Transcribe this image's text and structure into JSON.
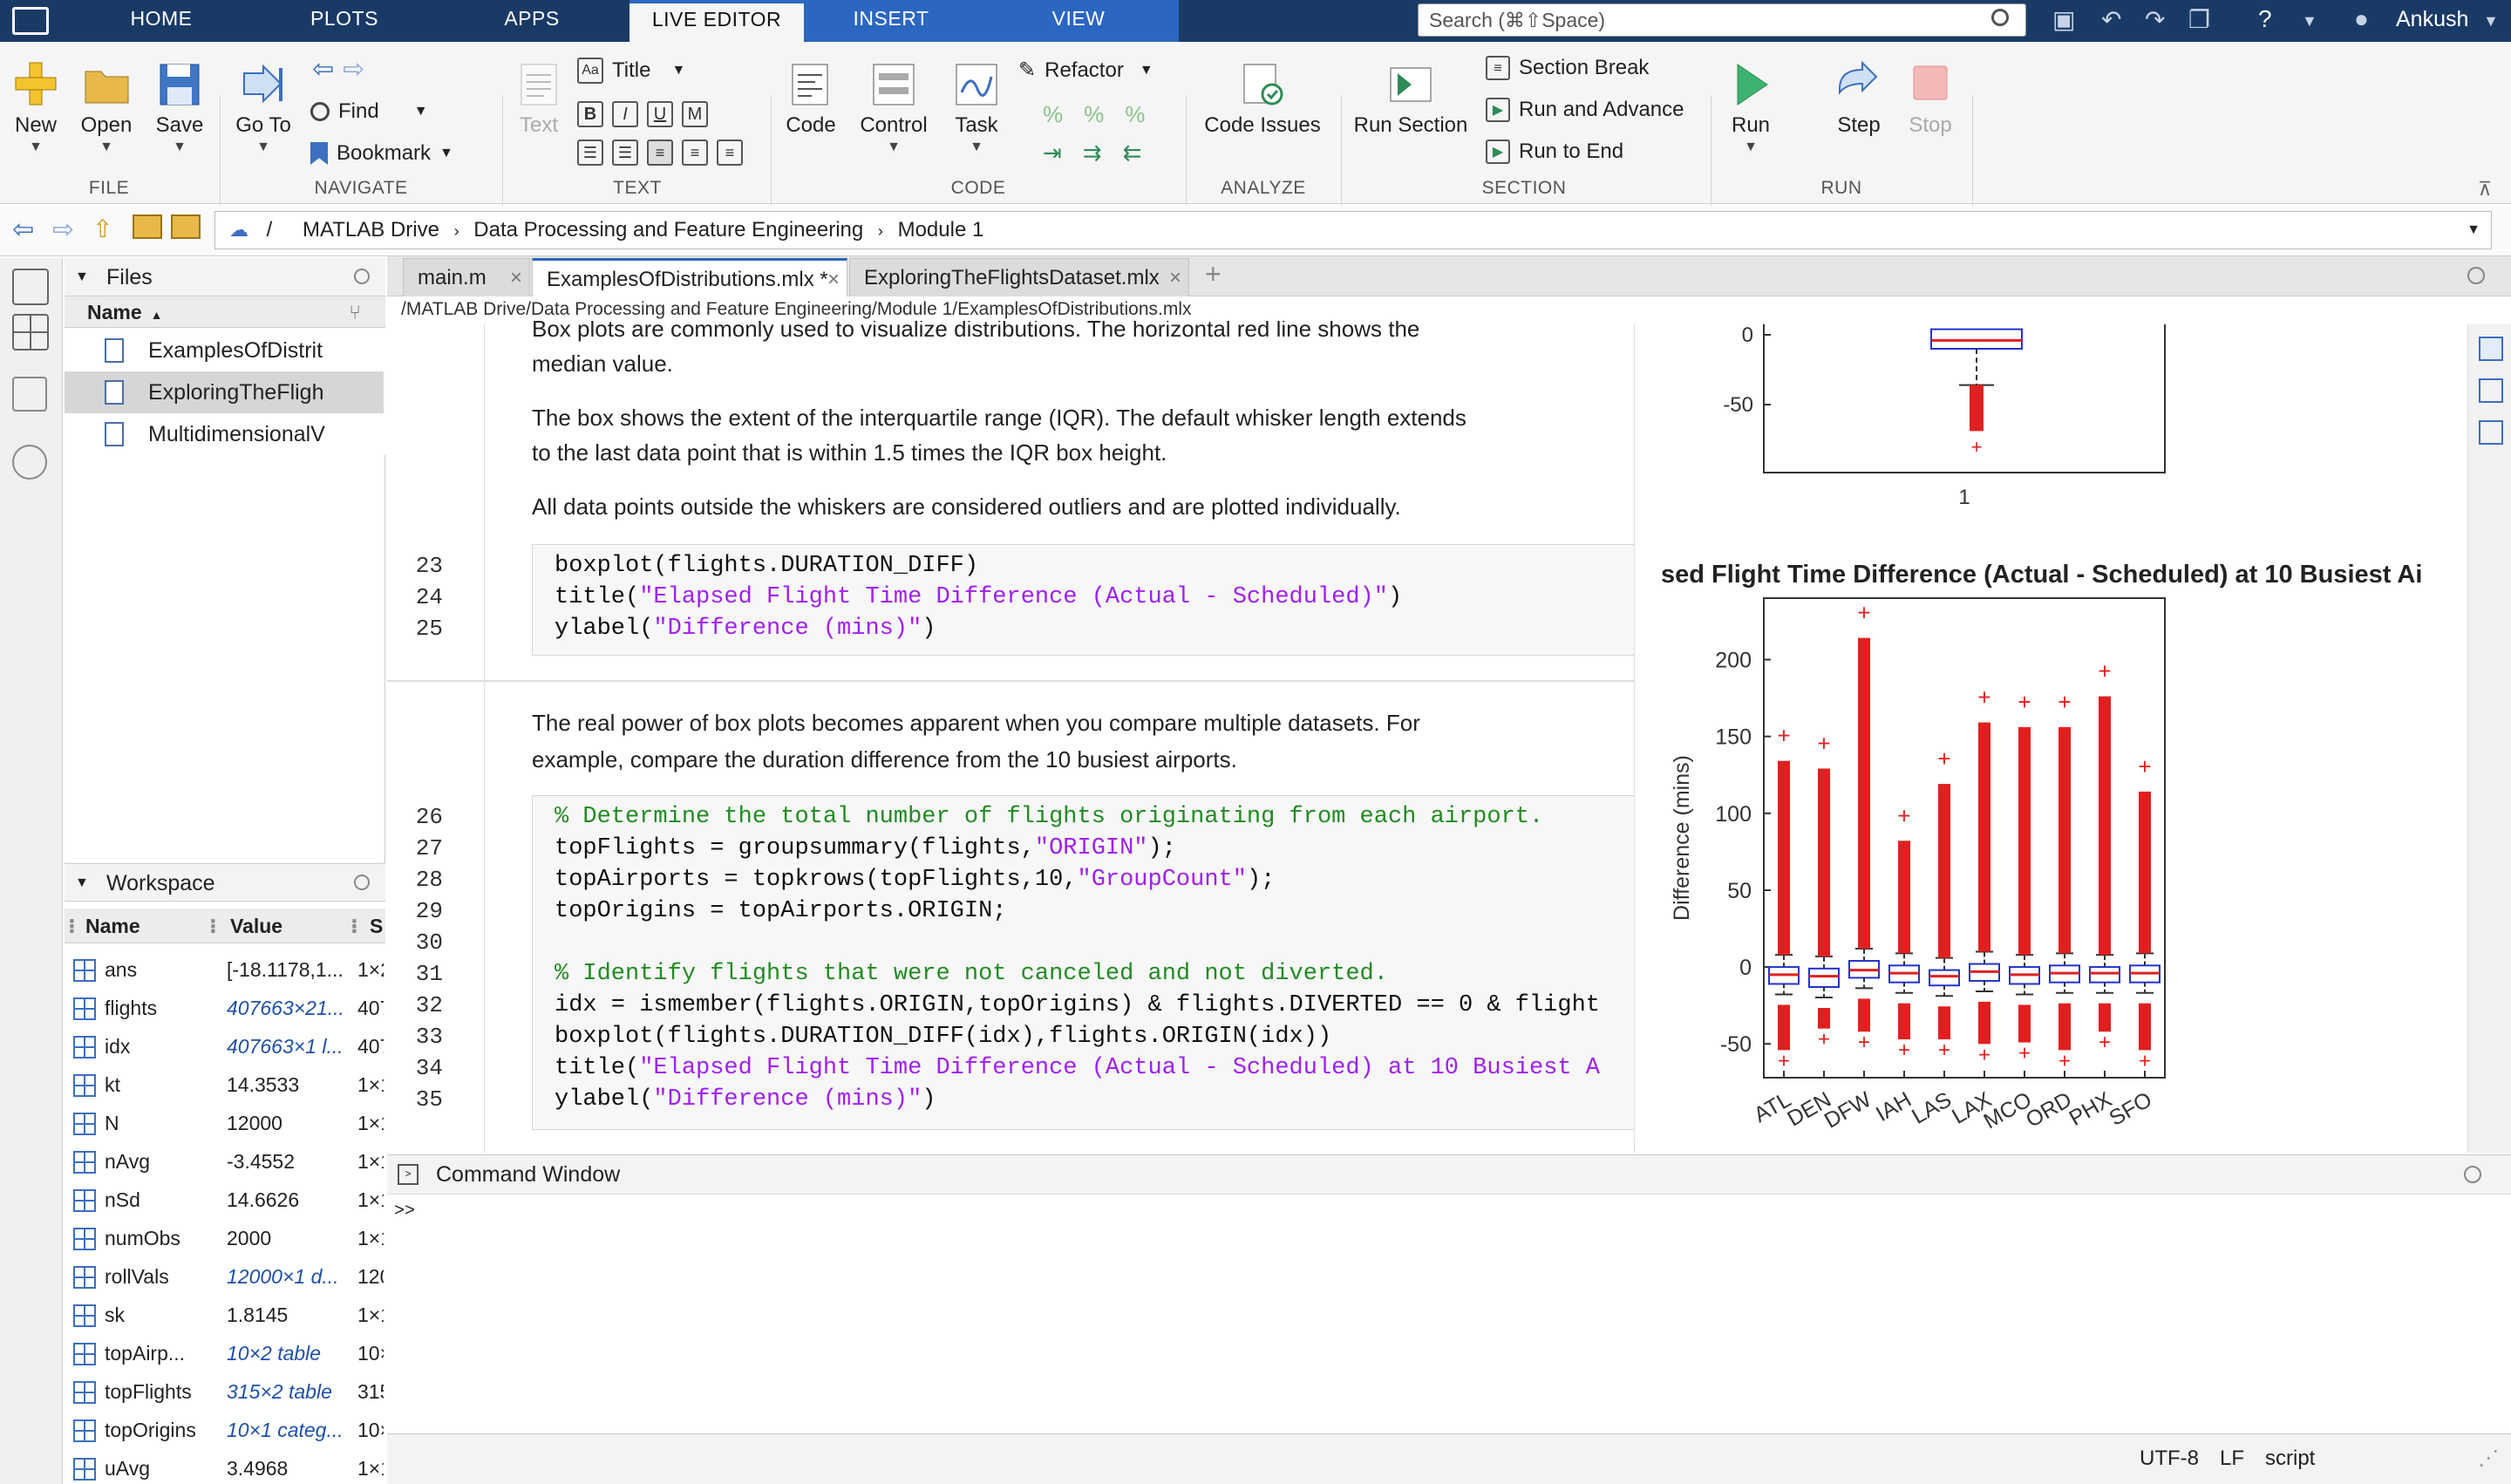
{
  "tabs": {
    "home": "HOME",
    "plots": "PLOTS",
    "apps": "APPS",
    "live_editor": "LIVE EDITOR",
    "insert": "INSERT",
    "view": "VIEW"
  },
  "search": {
    "placeholder": "Search (⌘⇧Space)"
  },
  "user": {
    "name": "Ankush"
  },
  "toolstrip": {
    "file": {
      "new": "New",
      "open": "Open",
      "save": "Save",
      "section": "FILE"
    },
    "navigate": {
      "goto": "Go To",
      "find": "Find",
      "bookmark": "Bookmark",
      "section": "NAVIGATE"
    },
    "text": {
      "text": "Text",
      "title": "Title",
      "section": "TEXT",
      "bold": "B",
      "italic": "I",
      "underline": "U",
      "mono": "M"
    },
    "code": {
      "code": "Code",
      "control": "Control",
      "task": "Task",
      "refactor": "Refactor",
      "section": "CODE"
    },
    "analyze": {
      "issues": "Code Issues",
      "section": "ANALYZE"
    },
    "sect": {
      "run_section": "Run Section",
      "section_break": "Section Break",
      "run_advance": "Run and Advance",
      "run_end": "Run to End",
      "section": "SECTION"
    },
    "run": {
      "run": "Run",
      "step": "Step",
      "stop": "Stop",
      "section": "RUN"
    }
  },
  "address": {
    "root": "/",
    "p1": "MATLAB Drive",
    "p2": "Data Processing and Feature Engineering",
    "p3": "Module 1"
  },
  "files": {
    "title": "Files",
    "col_name": "Name",
    "items": [
      "ExamplesOfDistrit",
      "ExploringTheFligh",
      "MultidimensionalV"
    ]
  },
  "workspace": {
    "title": "Workspace",
    "col_name": "Name",
    "col_value": "Value",
    "col_size": "S",
    "rows": [
      {
        "name": "ans",
        "value": "[-18.1178,1...",
        "size": "1×2"
      },
      {
        "name": "flights",
        "value": "407663×21...",
        "size": "407"
      },
      {
        "name": "idx",
        "value": "407663×1 l...",
        "size": "407"
      },
      {
        "name": "kt",
        "value": "14.3533",
        "size": "1×1"
      },
      {
        "name": "N",
        "value": "12000",
        "size": "1×1"
      },
      {
        "name": "nAvg",
        "value": "-3.4552",
        "size": "1×1"
      },
      {
        "name": "nSd",
        "value": "14.6626",
        "size": "1×1"
      },
      {
        "name": "numObs",
        "value": "2000",
        "size": "1×1"
      },
      {
        "name": "rollVals",
        "value": "12000×1 d...",
        "size": "120"
      },
      {
        "name": "sk",
        "value": "1.8145",
        "size": "1×1"
      },
      {
        "name": "topAirp...",
        "value": "10×2 table",
        "size": "10×"
      },
      {
        "name": "topFlights",
        "value": "315×2 table",
        "size": "315"
      },
      {
        "name": "topOrigins",
        "value": "10×1 categ...",
        "size": "10×"
      },
      {
        "name": "uAvg",
        "value": "3.4968",
        "size": "1×1"
      }
    ]
  },
  "editor": {
    "tabs": [
      "main.m",
      "ExamplesOfDistributions.mlx *",
      "ExploringTheFlightsDataset.mlx"
    ],
    "path": "/MATLAB Drive/Data Processing and Feature Engineering/Module 1/ExamplesOfDistributions.mlx",
    "para0": "Box plots are commonly used to visualize distributions. The horizontal red line shows the",
    "para0b": "median value.",
    "para1": "The box shows the extent of the interquartile range (IQR). The default whisker length extends",
    "para1b": "to the last data point that is within 1.5 times the IQR box height.",
    "para2": "All data points outside the whiskers are considered outliers and are plotted individually.",
    "para3": "The real power of box plots becomes apparent when you compare multiple datasets. For",
    "para3b": "example, compare the duration difference from the 10 busiest airports.",
    "lines": [
      {
        "n": "23",
        "c": "boxplot(flights.DURATION_DIFF)"
      },
      {
        "n": "24",
        "a": "title(",
        "s": "\"Elapsed Flight Time Difference (Actual - Scheduled)\"",
        "b": ")"
      },
      {
        "n": "25",
        "a": "ylabel(",
        "s": "\"Difference (mins)\"",
        "b": ")"
      },
      {
        "n": "26",
        "cm": "% Determine the total number of flights originating from each airport."
      },
      {
        "n": "27",
        "a": "topFlights = groupsummary(flights,",
        "s": "\"ORIGIN\"",
        "b": ");"
      },
      {
        "n": "28",
        "a": "topAirports = topkrows(topFlights,10,",
        "s": "\"GroupCount\"",
        "b": ");"
      },
      {
        "n": "29",
        "c": "topOrigins = topAirports.ORIGIN;"
      },
      {
        "n": "30",
        "c": ""
      },
      {
        "n": "31",
        "cm": "% Identify flights that were not canceled and not diverted."
      },
      {
        "n": "32",
        "c": "idx = ismember(flights.ORIGIN,topOrigins) & flights.DIVERTED == 0 & flight"
      },
      {
        "n": "33",
        "c": "boxplot(flights.DURATION_DIFF(idx),flights.ORIGIN(idx))"
      },
      {
        "n": "34",
        "a": "title(",
        "s": "\"Elapsed Flight Time Difference (Actual - Scheduled) at 10 Busiest A",
        "b": ""
      },
      {
        "n": "35",
        "a": "ylabel(",
        "s": "\"Difference (mins)\"",
        "b": ")"
      }
    ]
  },
  "command": {
    "title": "Command Window",
    "prompt": ">>"
  },
  "status": {
    "enc": "UTF-8",
    "eol": "LF",
    "mode": "script"
  },
  "chart_data": [
    {
      "type": "box",
      "categories": [
        "1"
      ],
      "yticks": [
        0,
        -50
      ],
      "box": {
        "q1": -10,
        "q3": 4,
        "median": -4,
        "whisker_low": -36
      },
      "outliers_range": [
        -36,
        -80
      ]
    },
    {
      "type": "box",
      "title": "sed Flight Time Difference (Actual - Scheduled) at 10 Busiest Ai",
      "ylabel": "Difference (mins)",
      "ylim": [
        -72,
        240
      ],
      "yticks": [
        -50,
        0,
        50,
        100,
        150,
        200
      ],
      "categories": [
        "ATL",
        "DEN",
        "DFW",
        "IAH",
        "LAS",
        "LAX",
        "MCO",
        "ORD",
        "PHX",
        "SFO"
      ],
      "q1": [
        -11,
        -13,
        -7,
        -10,
        -12,
        -9,
        -11,
        -10,
        -10,
        -10
      ],
      "median": [
        -5,
        -6,
        -2,
        -4,
        -6,
        -3,
        -5,
        -4,
        -4,
        -4
      ],
      "q3": [
        0,
        -1,
        4,
        1,
        -2,
        2,
        0,
        1,
        0,
        1
      ],
      "upper": [
        150,
        145,
        230,
        98,
        135,
        175,
        172,
        172,
        192,
        130
      ],
      "lower": [
        -62,
        -48,
        -50,
        -55,
        -55,
        -58,
        -57,
        -62,
        -50,
        -62
      ]
    }
  ]
}
